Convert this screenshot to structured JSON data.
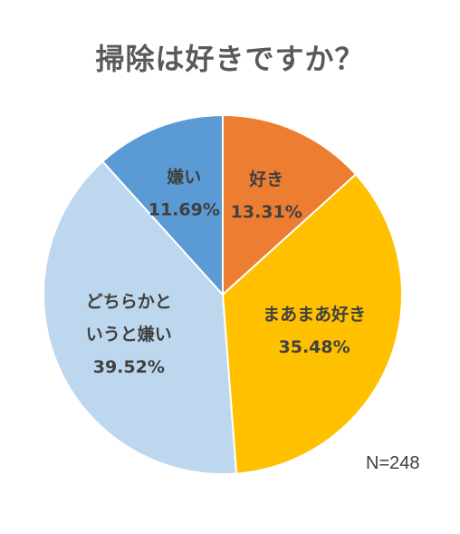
{
  "chart_data": {
    "type": "pie",
    "title": "掃除は好きですか？",
    "note": "N=248",
    "start_angle_deg": 0,
    "direction": "clockwise",
    "slices": [
      {
        "label": "好き",
        "label_lines": [
          "好き"
        ],
        "value": 13.31,
        "value_text": "13.31%",
        "color": "#ED7D31"
      },
      {
        "label": "まあまあ好き",
        "label_lines": [
          "まあまあ好き"
        ],
        "value": 35.48,
        "value_text": "35.48%",
        "color": "#FFC000"
      },
      {
        "label": "どちらかというと嫌い",
        "label_lines": [
          "どちらかと",
          "いうと嫌い"
        ],
        "value": 39.52,
        "value_text": "39.52%",
        "color": "#BDD7EE"
      },
      {
        "label": "嫌い",
        "label_lines": [
          "嫌い"
        ],
        "value": 11.69,
        "value_text": "11.69%",
        "color": "#5B9BD5"
      }
    ]
  }
}
